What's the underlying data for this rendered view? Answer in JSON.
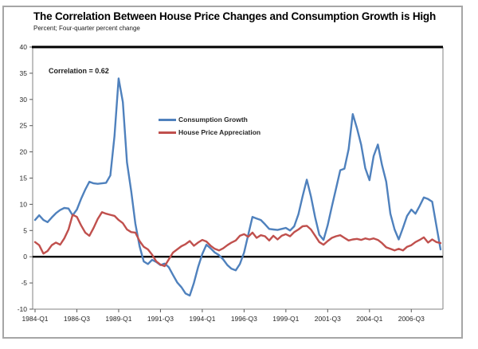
{
  "chart_data": {
    "type": "line",
    "title": "The Correlation Between House Price Changes and Consumption Growth is High",
    "subtitle": "Percent; Four-quarter percent change",
    "annotation": "Correlation = 0.62",
    "xlabel": "",
    "ylabel": "Percent; Four-quarter percent change",
    "x_start": "1984-Q1",
    "x_end": "2008-Q2",
    "x_frequency": "quarterly",
    "n_points": 98,
    "x_tick_labels": [
      "1984-Q1",
      "1986-Q3",
      "1989-Q1",
      "1991-Q3",
      "1994-Q1",
      "1996-Q3",
      "1999-Q1",
      "2001-Q3",
      "2004-Q1",
      "2006-Q3"
    ],
    "x_tick_every": 10,
    "y_ticks": [
      -10,
      -5,
      0,
      5,
      10,
      15,
      20,
      25,
      30,
      35,
      40
    ],
    "ylim": [
      -10,
      40
    ],
    "grid": false,
    "zero_line": true,
    "legend_position": "inside-upper-middle",
    "series": [
      {
        "name": "Consumption Growth",
        "color": "#4F81BD",
        "values": [
          7.0,
          7.9,
          7.0,
          6.6,
          7.5,
          8.3,
          8.9,
          9.3,
          9.2,
          7.9,
          9.0,
          11.0,
          12.8,
          14.3,
          14.0,
          13.9,
          14.0,
          14.1,
          15.5,
          23.0,
          34.0,
          29.5,
          18.0,
          12.5,
          6.3,
          2.0,
          -0.9,
          -1.4,
          -0.6,
          -1.0,
          -1.6,
          -1.3,
          -2.0,
          -3.5,
          -4.9,
          -5.8,
          -7.0,
          -7.4,
          -5.0,
          -2.0,
          0.5,
          2.3,
          1.6,
          0.8,
          0.3,
          -0.5,
          -1.6,
          -2.3,
          -2.6,
          -1.4,
          0.8,
          4.2,
          7.6,
          7.3,
          7.0,
          6.2,
          5.3,
          5.2,
          5.1,
          5.3,
          5.5,
          5.0,
          5.8,
          8.1,
          11.5,
          14.7,
          11.5,
          7.5,
          4.2,
          3.2,
          6.0,
          9.6,
          13.0,
          16.5,
          16.8,
          20.5,
          27.2,
          24.5,
          21.4,
          16.9,
          14.6,
          19.2,
          21.4,
          17.5,
          14.3,
          8.2,
          5.2,
          3.3,
          5.5,
          7.8,
          9.0,
          8.2,
          9.7,
          11.3,
          11.0,
          10.5,
          5.9,
          1.4
        ]
      },
      {
        "name": "House Price Appreciation",
        "color": "#C0504D",
        "values": [
          2.8,
          2.2,
          0.6,
          1.1,
          2.2,
          2.7,
          2.3,
          3.5,
          5.2,
          8.0,
          7.6,
          6.0,
          4.6,
          4.0,
          5.5,
          7.2,
          8.5,
          8.2,
          8.0,
          7.8,
          7.0,
          6.4,
          5.2,
          4.7,
          4.6,
          3.0,
          1.9,
          1.4,
          0.4,
          -0.9,
          -1.5,
          -1.8,
          -0.5,
          0.8,
          1.4,
          2.0,
          2.4,
          3.0,
          2.1,
          2.7,
          3.2,
          2.9,
          2.1,
          1.5,
          1.2,
          1.6,
          2.2,
          2.7,
          3.1,
          4.0,
          4.3,
          3.8,
          4.6,
          3.6,
          4.1,
          3.9,
          3.1,
          4.0,
          3.3,
          4.0,
          4.3,
          3.9,
          4.7,
          5.2,
          5.8,
          5.9,
          5.2,
          4.0,
          2.8,
          2.3,
          3.0,
          3.6,
          3.9,
          4.1,
          3.6,
          3.1,
          3.3,
          3.4,
          3.2,
          3.5,
          3.3,
          3.5,
          3.2,
          2.6,
          1.8,
          1.5,
          1.2,
          1.5,
          1.2,
          1.9,
          2.2,
          2.8,
          3.2,
          3.7,
          2.7,
          3.3,
          2.8,
          2.6
        ]
      }
    ],
    "style": {
      "line_width": 2.4,
      "plot_border_color": "#808080",
      "axis_tick_color": "#595959",
      "zero_line_color": "#000000",
      "top_border_color": "#000000",
      "frame_color": "#a6a6a6"
    }
  }
}
